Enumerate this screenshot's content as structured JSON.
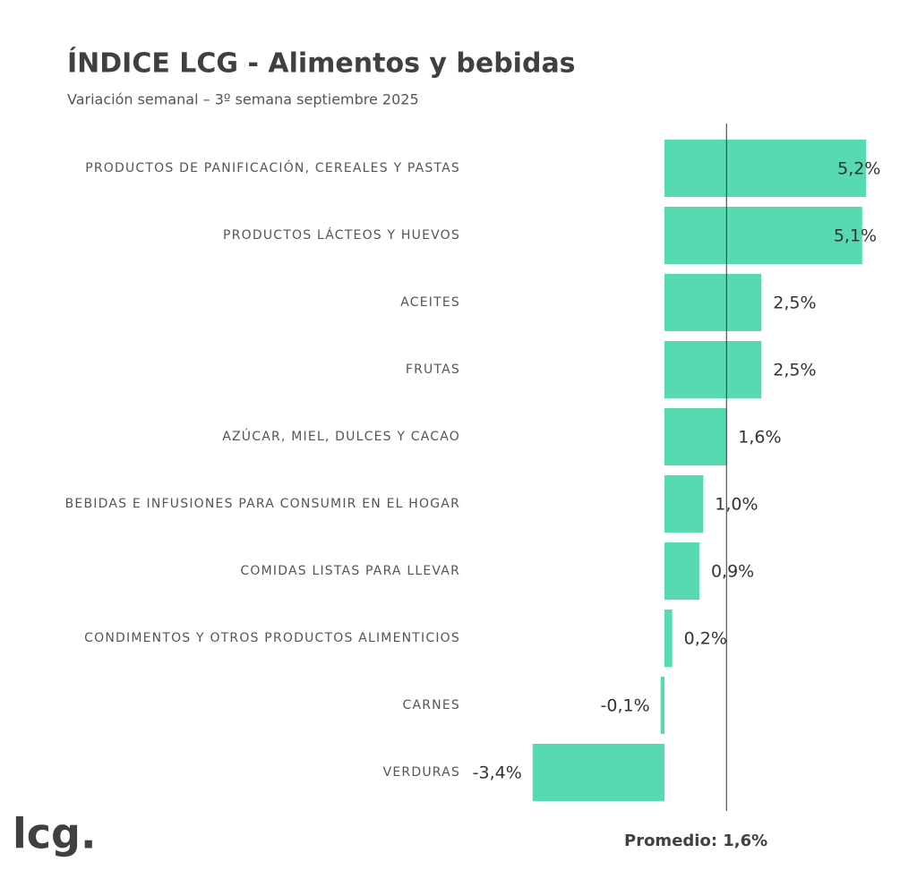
{
  "chart_data": {
    "type": "hbar",
    "title": "ÍNDICE LCG - Alimentos y bebidas",
    "subtitle": "Variación semanal – 3º semana septiembre 2025",
    "categories": [
      "PRODUCTOS DE PANIFICACIÓN, CEREALES Y PASTAS",
      "PRODUCTOS LÁCTEOS Y HUEVOS",
      "ACEITES",
      "FRUTAS",
      "AZÚCAR, MIEL, DULCES Y CACAO",
      "BEBIDAS E INFUSIONES PARA CONSUMIR EN EL HOGAR",
      "COMIDAS LISTAS PARA LLEVAR",
      "CONDIMENTOS Y OTROS PRODUCTOS ALIMENTICIOS",
      "CARNES",
      "VERDURAS"
    ],
    "values": [
      5.2,
      5.1,
      2.5,
      2.5,
      1.6,
      1.0,
      0.9,
      0.2,
      -0.1,
      -3.4
    ],
    "value_labels": [
      "5,2%",
      "5,1%",
      "2,5%",
      "2,5%",
      "1,6%",
      "1,0%",
      "0,9%",
      "0,2%",
      "-0,1%",
      "-3,4%"
    ],
    "color": "#57d9b1",
    "average": 1.6,
    "average_label": "Promedio: 1,6%",
    "logo": "lcg."
  }
}
